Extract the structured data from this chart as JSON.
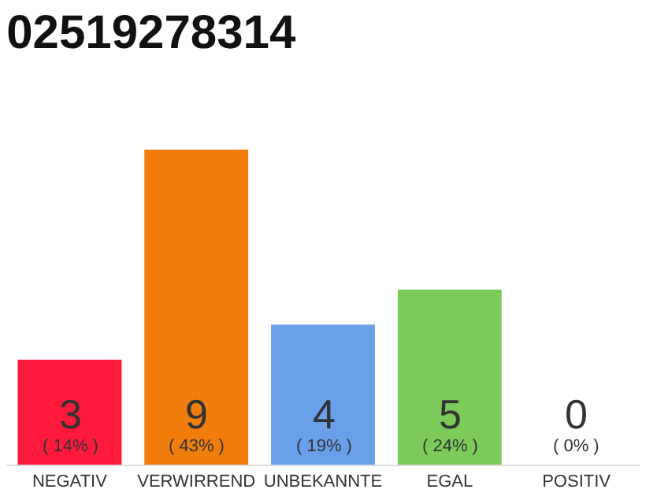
{
  "chart_data": {
    "type": "bar",
    "title": "02519278314",
    "categories": [
      "NEGATIV",
      "VERWIRREND",
      "UNBEKANNTE",
      "EGAL",
      "POSITIV"
    ],
    "values": [
      3,
      9,
      4,
      5,
      0
    ],
    "colors": [
      "#ff1a3c",
      "#f07d0c",
      "#6aa0ea",
      "#7ccb5a",
      "#b0b0b0"
    ],
    "value_labels": [
      "3\n( 14% )",
      "9\n( 43% )",
      "4\n( 19% )",
      "5\n( 24% )",
      "0\n( 0% )"
    ],
    "ylim": [
      0,
      9
    ]
  }
}
